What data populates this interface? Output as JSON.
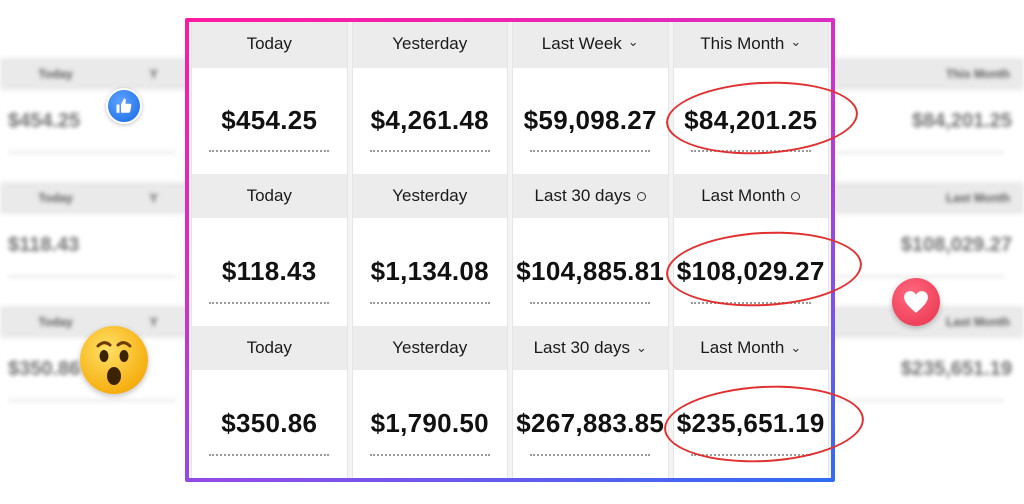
{
  "rows": [
    {
      "cells": [
        {
          "label": "Today",
          "value": "$454.25"
        },
        {
          "label": "Yesterday",
          "value": "$4,261.48"
        },
        {
          "label": "Last Week",
          "value": "$59,098.27",
          "icon": "chevron-down-icon"
        },
        {
          "label": "This Month",
          "value": "$84,201.25",
          "icon": "chevron-down-icon"
        }
      ]
    },
    {
      "cells": [
        {
          "label": "Today",
          "value": "$118.43"
        },
        {
          "label": "Yesterday",
          "value": "$1,134.08"
        },
        {
          "label": "Last 30 days",
          "value": "$104,885.81",
          "icon": "circle-icon"
        },
        {
          "label": "Last Month",
          "value": "$108,029.27",
          "icon": "circle-icon"
        }
      ]
    },
    {
      "cells": [
        {
          "label": "Today",
          "value": "$350.86"
        },
        {
          "label": "Yesterday",
          "value": "$1,790.50"
        },
        {
          "label": "Last 30 days",
          "value": "$267,883.85",
          "icon": "chevron-down-icon"
        },
        {
          "label": "Last Month",
          "value": "$235,651.19",
          "icon": "chevron-down-icon"
        }
      ]
    }
  ],
  "background_blurred": {
    "left": [
      {
        "labels": [
          "Today",
          "Y"
        ],
        "value": "$454.25"
      },
      {
        "labels": [
          "Today",
          "Y"
        ],
        "value": "$118.43"
      },
      {
        "labels": [
          "Today",
          "Y"
        ],
        "value": "$350.86"
      }
    ],
    "right": [
      {
        "labels": [
          "This Month"
        ],
        "value": "$84,201.25"
      },
      {
        "labels": [
          "Last Month"
        ],
        "value": "$108,029.27"
      },
      {
        "labels": [
          "Last Month"
        ],
        "value": "$235,651.19"
      }
    ]
  },
  "reactions": [
    "like-icon",
    "wow-emoji-icon",
    "heart-icon"
  ],
  "colors": {
    "frame_gradient_start": "#ff1aa0",
    "frame_gradient_end": "#2f6cf5",
    "highlight_oval": "#e03030"
  }
}
